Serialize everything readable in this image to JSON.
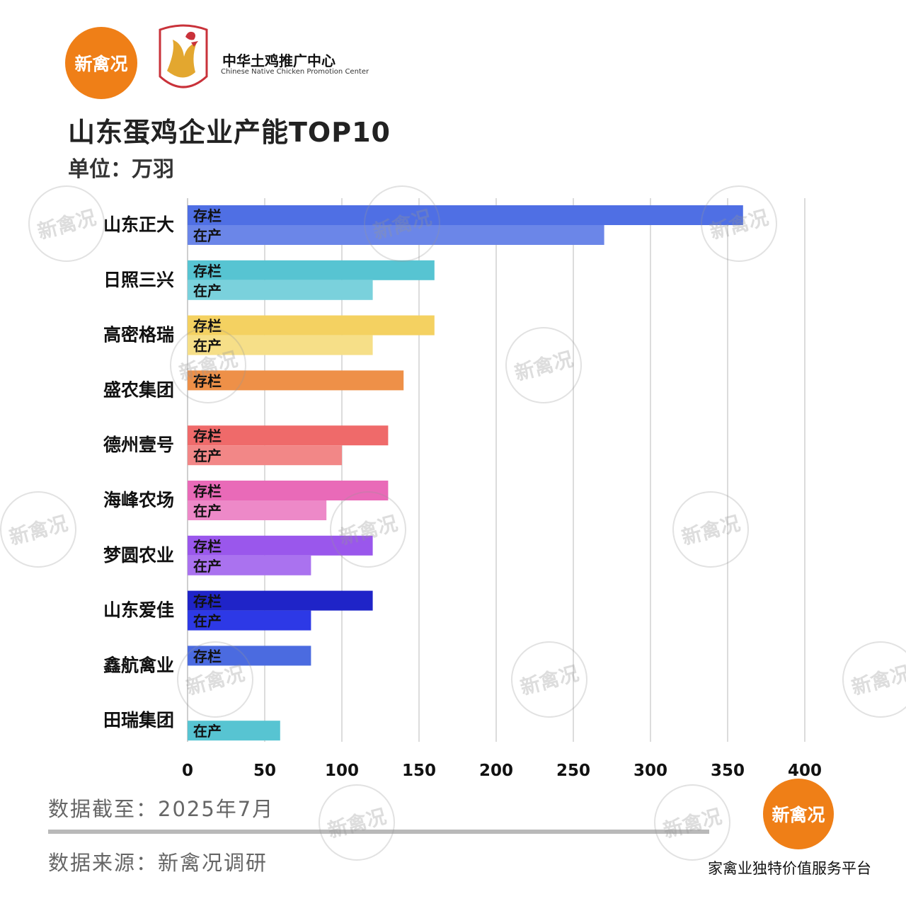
{
  "header": {
    "logo_text": "新禽况",
    "partner_name": "中华土鸡推广中心",
    "partner_sub": "Chinese Native Chicken Promotion Center"
  },
  "title": "山东蛋鸡企业产能TOP10",
  "unit": "单位：万羽",
  "chart_data": {
    "type": "bar",
    "orientation": "horizontal",
    "title": "山东蛋鸡企业产能TOP10",
    "categories": [
      "山东正大",
      "日照三兴",
      "高密格瑞",
      "盛农集团",
      "德州壹号",
      "海峰农场",
      "梦圆农业",
      "山东爱佳",
      "鑫航禽业",
      "田瑞集团"
    ],
    "series": [
      {
        "name": "存栏",
        "values": [
          360,
          160,
          160,
          140,
          130,
          130,
          120,
          120,
          80,
          null
        ]
      },
      {
        "name": "在产",
        "values": [
          270,
          120,
          120,
          null,
          100,
          90,
          80,
          80,
          null,
          60
        ]
      }
    ],
    "xlim": [
      0,
      400
    ],
    "xticks": [
      0,
      50,
      100,
      150,
      200,
      250,
      300,
      350,
      400
    ],
    "grid": true,
    "colors": [
      [
        "#4f6fe4",
        "#6b86e8"
      ],
      [
        "#57c4d2",
        "#7ad1dc"
      ],
      [
        "#f4d161",
        "#f6df88"
      ],
      [
        "#ee9048",
        "#f1a465"
      ],
      [
        "#ef6a6a",
        "#f28787"
      ],
      [
        "#e96ab8",
        "#ed89c8"
      ],
      [
        "#9a57ec",
        "#aa72ef"
      ],
      [
        "#1f24c8",
        "#2d39e6"
      ],
      [
        "#4b6be0",
        "#6b86e8"
      ],
      [
        "#57c4d2",
        "#57c4d2"
      ]
    ]
  },
  "footer": {
    "date": "数据截至：2025年7月",
    "source": "数据来源：新禽况调研",
    "platform": "家禽业独特价值服务平台",
    "logo_text": "新禽况"
  },
  "watermark_text": "新禽况"
}
